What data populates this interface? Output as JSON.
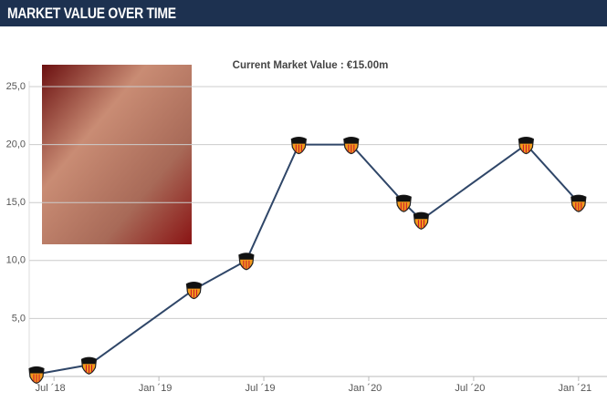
{
  "header": {
    "title": "MARKET VALUE OVER TIME"
  },
  "chart_data": {
    "type": "line",
    "subtitle": "Current Market Value : €15.00m",
    "x": [
      "2018-06",
      "2018-09",
      "2019-03",
      "2019-06",
      "2019-09",
      "2019-12",
      "2020-03",
      "2020-04",
      "2020-10",
      "2021-01"
    ],
    "series": [
      {
        "name": "Market value",
        "color": "#2f4668",
        "values": [
          0.2,
          1.0,
          7.5,
          10.0,
          20.0,
          20.0,
          15.0,
          13.5,
          20.0,
          15.0
        ]
      }
    ],
    "xlim": [
      "2018-06",
      "2021-02"
    ],
    "xticks": [
      {
        "value": "2018-07",
        "label": "Jul ´18"
      },
      {
        "value": "2019-01",
        "label": "Jan ´19"
      },
      {
        "value": "2019-07",
        "label": "Jul ´19"
      },
      {
        "value": "2020-01",
        "label": "Jan ´20"
      },
      {
        "value": "2020-07",
        "label": "Jul ´20"
      },
      {
        "value": "2021-01",
        "label": "Jan ´21"
      }
    ],
    "ylim": [
      0,
      25
    ],
    "yticks": [
      {
        "value": 5,
        "label": "5,0"
      },
      {
        "value": 10,
        "label": "10,0"
      },
      {
        "value": 15,
        "label": "15,0"
      },
      {
        "value": 20,
        "label": "20,0"
      },
      {
        "value": 25,
        "label": "25,0"
      }
    ],
    "grid": true
  }
}
